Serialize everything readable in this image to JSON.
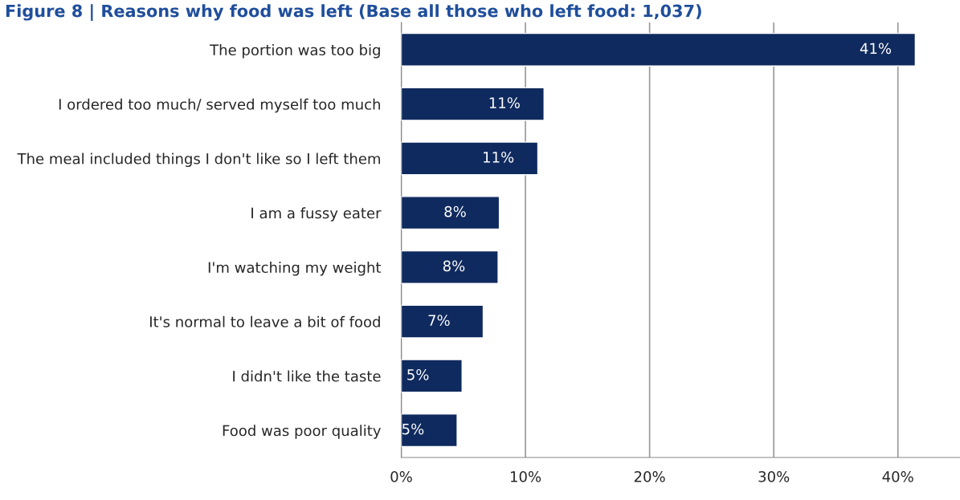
{
  "chart_data": {
    "type": "bar",
    "orientation": "horizontal",
    "title": "Figure 8 | Reasons why food was left (Base all those who left food: 1,037)",
    "categories": [
      "The portion was too big",
      "I ordered too much/ served myself too much",
      "The meal included things I don't like so I left them",
      "I am a fussy eater",
      "I'm watching my weight",
      "It's normal to leave a bit of food",
      "I didn't like the taste",
      "Food was poor quality"
    ],
    "values": [
      41.4,
      11.5,
      11.0,
      7.9,
      7.8,
      6.6,
      4.9,
      4.5
    ],
    "value_labels": [
      "41%",
      "11%",
      "11%",
      "8%",
      "8%",
      "7%",
      "5%",
      "5%"
    ],
    "color": "#0f2a5e",
    "xlim": [
      0,
      45
    ],
    "xticks": [
      {
        "value": 0,
        "label": "0%"
      },
      {
        "value": 10,
        "label": "10%"
      },
      {
        "value": 20,
        "label": "20%"
      },
      {
        "value": 30,
        "label": "30%"
      },
      {
        "value": 40,
        "label": "40%"
      }
    ],
    "grid": "x"
  }
}
